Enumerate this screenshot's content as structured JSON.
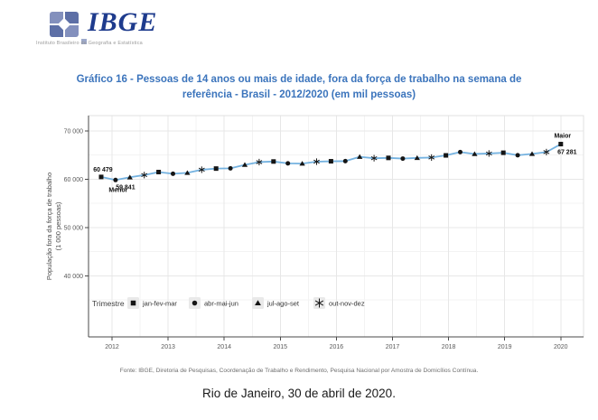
{
  "logo": {
    "wordmark": "IBGE",
    "caption": "Instituto Brasileiro de Geografia e Estatística"
  },
  "title": {
    "line1": "Gráfico 16 - Pessoas de 14 anos ou mais de idade, fora da força de trabalho na semana de",
    "line2": "referência - Brasil - 2012/2020 (em mil pessoas)",
    "color": "#3B74BC"
  },
  "chart_data": {
    "type": "line",
    "title": "Gráfico 16 - Pessoas de 14 anos ou mais de idade, fora da força de trabalho na semana de referência - Brasil - 2012/2020 (em mil pessoas)",
    "ylabel_line1": "População fora da força de trabalho",
    "ylabel_line2": "(1 000 pessoas)",
    "x_tick_labels": [
      "2012",
      "2013",
      "2014",
      "2015",
      "2016",
      "2017",
      "2018",
      "2019",
      "2020"
    ],
    "y_ticks": [
      {
        "label": "70 000",
        "value": 70000
      },
      {
        "label": "60 000",
        "value": 60000
      },
      {
        "label": "50 000",
        "value": 50000
      },
      {
        "label": "40 000",
        "value": 40000
      }
    ],
    "ylim": [
      27500,
      73200
    ],
    "grid": true,
    "line_color": "#74B2E0",
    "marker_color": "#151515",
    "series_name": "População fora da força de trabalho (1 000 pessoas)",
    "periods": [
      "2012 jan-fev-mar",
      "2012 abr-mai-jun",
      "2012 jul-ago-set",
      "2012 out-nov-dez",
      "2013 jan-fev-mar",
      "2013 abr-mai-jun",
      "2013 jul-ago-set",
      "2013 out-nov-dez",
      "2014 jan-fev-mar",
      "2014 abr-mai-jun",
      "2014 jul-ago-set",
      "2014 out-nov-dez",
      "2015 jan-fev-mar",
      "2015 abr-mai-jun",
      "2015 jul-ago-set",
      "2015 out-nov-dez",
      "2016 jan-fev-mar",
      "2016 abr-mai-jun",
      "2016 jul-ago-set",
      "2016 out-nov-dez",
      "2017 jan-fev-mar",
      "2017 abr-mai-jun",
      "2017 jul-ago-set",
      "2017 out-nov-dez",
      "2018 jan-fev-mar",
      "2018 abr-mai-jun",
      "2018 jul-ago-set",
      "2018 out-nov-dez",
      "2019 jan-fev-mar",
      "2019 abr-mai-jun",
      "2019 jul-ago-set",
      "2019 out-nov-dez",
      "2020 jan-fev-mar"
    ],
    "values": [
      60479,
      59841,
      60404,
      60865,
      61490,
      61135,
      61320,
      61970,
      62209,
      62258,
      62986,
      63553,
      63676,
      63286,
      63245,
      63641,
      63723,
      63748,
      64648,
      64355,
      64421,
      64280,
      64420,
      64496,
      64942,
      65633,
      65237,
      65337,
      65488,
      64970,
      65248,
      65622,
      67281
    ],
    "annotations": {
      "first_label": "60 479",
      "min_name": "Menor",
      "min_label": "59 841",
      "max_name": "Maior",
      "max_label": "67 281"
    },
    "legend": {
      "title": "Trimestre",
      "position": "bottom-left-inside",
      "items": [
        {
          "shape": "square",
          "label": "jan-fev-mar"
        },
        {
          "shape": "circle",
          "label": "abr-mai-jun"
        },
        {
          "shape": "triangle",
          "label": "jul-ago-set"
        },
        {
          "shape": "asterisk",
          "label": "out-nov-dez"
        }
      ]
    }
  },
  "footer": {
    "source": "Fonte: IBGE, Diretoria de Pesquisas, Coordenação de Trabalho e Rendimento, Pesquisa Nacional por Amostra de Domicílios Contínua.",
    "dateline": "Rio de Janeiro, 30 de abril de 2020."
  }
}
